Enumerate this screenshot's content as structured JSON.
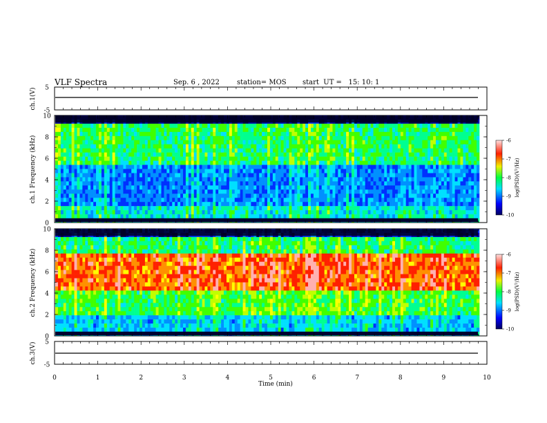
{
  "header": {
    "title": "VLF Spectra",
    "date": "Sep. 6 , 2022",
    "station": "station= MOS",
    "start": "start  UT =   15: 10: 1"
  },
  "colors": {
    "accent": "#000000",
    "background": "#ffffff"
  },
  "chart_data": [
    {
      "type": "line",
      "id": "ch1-voltage",
      "ylabel": "ch.1(V)",
      "ylim": [
        -5,
        5
      ],
      "yticks": [
        "5",
        "-5"
      ],
      "series_level": 0
    },
    {
      "type": "heatmap",
      "id": "ch1-spectrogram",
      "ylabel": "ch.1 Frequency (kHz)",
      "ylim": [
        0,
        10
      ],
      "yticks": [
        "0",
        "2",
        "4",
        "6",
        "8",
        "10"
      ],
      "xlim": [
        0,
        10
      ],
      "colorbar": {
        "label": "log(PSD)(V²/Hz)",
        "range": [
          -10,
          -6
        ],
        "ticks": [
          "-6",
          "-7",
          "-8",
          "-9",
          "-10"
        ]
      }
    },
    {
      "type": "heatmap",
      "id": "ch2-spectrogram",
      "ylabel": "ch.2 Frequency (kHz)",
      "ylim": [
        0,
        10
      ],
      "yticks": [
        "0",
        "2",
        "4",
        "6",
        "8",
        "10"
      ],
      "xlim": [
        0,
        10
      ],
      "colorbar": {
        "label": "log(PSD)(V²/Hz)",
        "range": [
          -10,
          -6
        ],
        "ticks": [
          "-6",
          "-7",
          "-8",
          "-9",
          "-10"
        ]
      }
    },
    {
      "type": "line",
      "id": "ch3-voltage",
      "ylabel": "ch.3(V)",
      "ylim": [
        -5,
        5
      ],
      "yticks": [
        "5",
        "-5"
      ],
      "series_level": 0
    }
  ],
  "xaxis": {
    "label": "Time (min)",
    "range": [
      0,
      10
    ],
    "ticks": [
      "0",
      "1",
      "2",
      "3",
      "4",
      "5",
      "6",
      "7",
      "8",
      "9",
      "10"
    ]
  }
}
